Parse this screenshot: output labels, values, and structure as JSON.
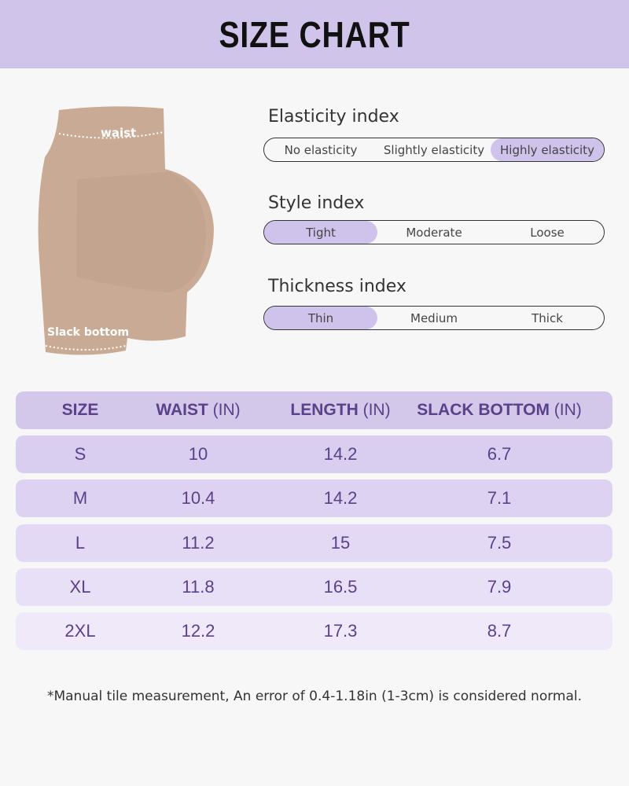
{
  "title": "SIZE CHART",
  "product": {
    "labels": {
      "waist": "waist",
      "slack_bottom": "Slack bottom"
    },
    "color": "#c9ab95"
  },
  "indices": [
    {
      "title": "Elasticity index",
      "options": [
        "No elasticity",
        "Slightly elasticity",
        "Highly elasticity"
      ],
      "selected": 2
    },
    {
      "title": "Style index",
      "options": [
        "Tight",
        "Moderate",
        "Loose"
      ],
      "selected": 0
    },
    {
      "title": "Thickness index",
      "options": [
        "Thin",
        "Medium",
        "Thick"
      ],
      "selected": 0
    }
  ],
  "table": {
    "headers": [
      {
        "name": "SIZE",
        "unit": ""
      },
      {
        "name": "WAIST",
        "unit": " (IN)"
      },
      {
        "name": "LENGTH",
        "unit": " (IN)"
      },
      {
        "name": "SLACK BOTTOM",
        "unit": " (IN)"
      }
    ],
    "rows": [
      [
        "S",
        "10",
        "14.2",
        "6.7"
      ],
      [
        "M",
        "10.4",
        "14.2",
        "7.1"
      ],
      [
        "L",
        "11.2",
        "15",
        "7.5"
      ],
      [
        "XL",
        "11.8",
        "16.5",
        "7.9"
      ],
      [
        "2XL",
        "12.2",
        "17.3",
        "8.7"
      ]
    ]
  },
  "colors": {
    "accent": "#d0c4eb",
    "text": "#5a4189"
  },
  "note": "*Manual tile measurement, An error of 0.4-1.18in (1-3cm) is considered normal."
}
